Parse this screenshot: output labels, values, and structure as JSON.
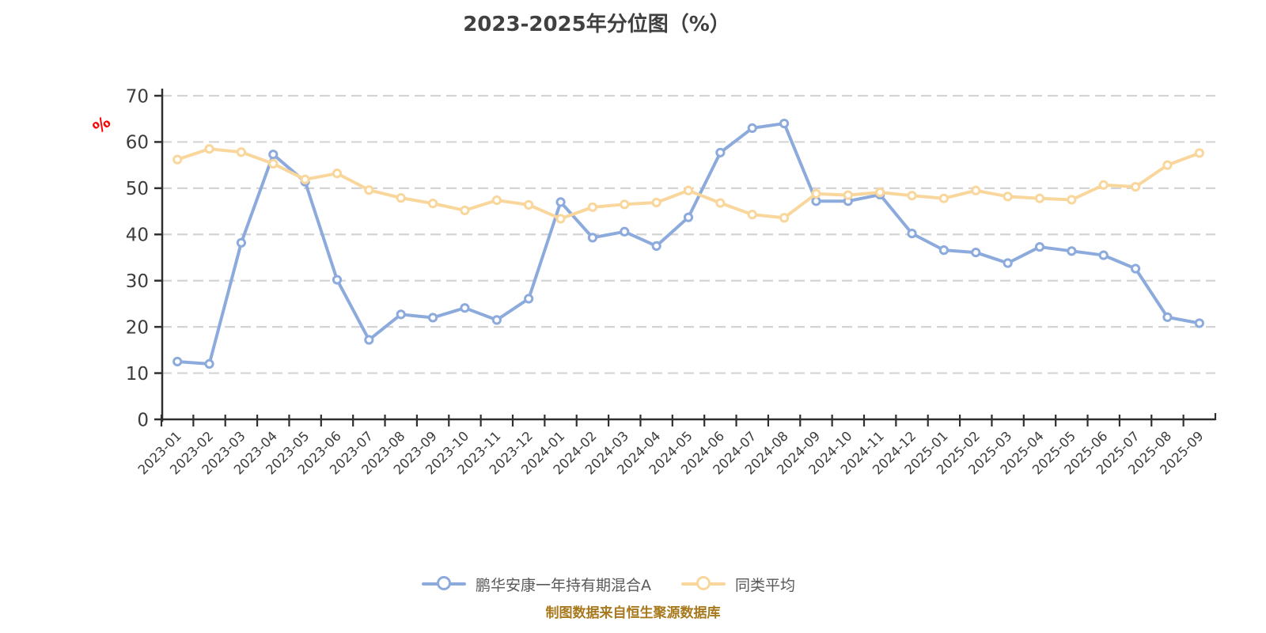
{
  "title": "2023-2025年分位图（%）",
  "y_axis": {
    "unit": "%",
    "unit_color": "#fe0000"
  },
  "footer_note": "制图数据来自恒生聚源数据库",
  "colors": {
    "title_text": "#404040",
    "axis_line": "#2f2f2f",
    "tick_label": "#3d3d3d",
    "gridline": "#d4d4d4",
    "legend_text": "#595959",
    "footer_text": "#a8791c",
    "series_fund": "#8caadc",
    "series_peer": "#f9d79c",
    "marker_fill": "#ffffff"
  },
  "chart_data": {
    "type": "line",
    "title": "2023-2025年分位图（%）",
    "xlabel": "",
    "ylabel": "%",
    "ylim": [
      0,
      70
    ],
    "yticks": [
      0,
      10,
      20,
      30,
      40,
      50,
      60,
      70
    ],
    "grid": "horizontal-dashed",
    "legend_position": "bottom",
    "categories": [
      "2023-01",
      "2023-02",
      "2023-03",
      "2023-04",
      "2023-05",
      "2023-06",
      "2023-07",
      "2023-08",
      "2023-09",
      "2023-10",
      "2023-11",
      "2023-12",
      "2024-01",
      "2024-02",
      "2024-03",
      "2024-04",
      "2024-05",
      "2024-06",
      "2024-07",
      "2024-08",
      "2024-09",
      "2024-10",
      "2024-11",
      "2024-12",
      "2025-01",
      "2025-02",
      "2025-03",
      "2025-04",
      "2025-05",
      "2025-06",
      "2025-07",
      "2025-08",
      "2025-09"
    ],
    "series": [
      {
        "name": "鹏华安康一年持有期混合A",
        "color": "#8caadc",
        "values": [
          12.5,
          12.0,
          38.2,
          57.3,
          51.4,
          30.2,
          17.2,
          22.7,
          22.0,
          24.1,
          21.5,
          26.1,
          47.0,
          39.3,
          40.6,
          37.5,
          43.7,
          57.7,
          63.0,
          64.0,
          47.2,
          47.2,
          48.6,
          40.2,
          36.6,
          36.1,
          33.8,
          37.3,
          36.4,
          35.5,
          32.6,
          22.1,
          20.8
        ]
      },
      {
        "name": "同类平均",
        "color": "#f9d79c",
        "values": [
          56.2,
          58.5,
          57.8,
          55.3,
          51.9,
          53.2,
          49.6,
          47.9,
          46.7,
          45.2,
          47.4,
          46.4,
          43.4,
          45.9,
          46.5,
          46.9,
          49.5,
          46.8,
          44.3,
          43.6,
          48.8,
          48.5,
          49.1,
          48.4,
          47.8,
          49.5,
          48.2,
          47.8,
          47.5,
          50.7,
          50.3,
          55.0,
          57.6
        ]
      }
    ]
  }
}
